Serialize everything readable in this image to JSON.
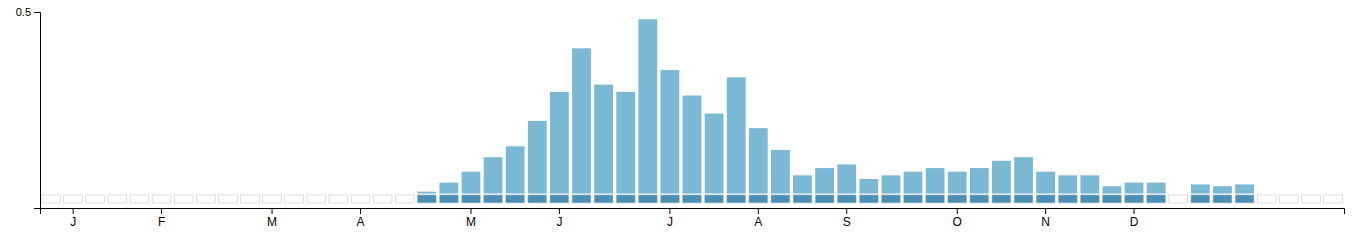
{
  "chart_data": {
    "type": "bar",
    "categories": [
      null,
      "J",
      null,
      null,
      null,
      "F",
      null,
      null,
      null,
      null,
      "M",
      null,
      null,
      null,
      "A",
      null,
      null,
      null,
      null,
      "M",
      null,
      null,
      null,
      "J",
      null,
      null,
      null,
      null,
      "J",
      null,
      null,
      null,
      "A",
      null,
      null,
      null,
      "S",
      null,
      null,
      null,
      null,
      "O",
      null,
      null,
      null,
      "N",
      null,
      null,
      null,
      "D",
      null,
      null,
      null,
      null,
      null,
      null,
      null,
      null,
      null
    ],
    "values": [
      0.0,
      0.0,
      0.0,
      0.0,
      0.0,
      0.0,
      0.0,
      0.0,
      0.0,
      0.0,
      0.0,
      0.0,
      0.0,
      0.0,
      0.0,
      0.0,
      0.0,
      0.005,
      0.03,
      0.06,
      0.1,
      0.13,
      0.2,
      0.28,
      0.4,
      0.3,
      0.28,
      0.48,
      0.34,
      0.27,
      0.22,
      0.32,
      0.18,
      0.12,
      0.05,
      0.07,
      0.08,
      0.04,
      0.05,
      0.06,
      0.07,
      0.06,
      0.07,
      0.09,
      0.1,
      0.06,
      0.05,
      0.05,
      0.02,
      0.03,
      0.03,
      0.0,
      0.025,
      0.02,
      0.025,
      0.0,
      0.0,
      0.0,
      0.0
    ],
    "color": "#7ab8d4",
    "ylim": [
      -0.04,
      0.5
    ],
    "yticks": [
      0.5
    ],
    "presence": [
      false,
      false,
      false,
      false,
      false,
      false,
      false,
      false,
      false,
      false,
      false,
      false,
      false,
      false,
      false,
      false,
      false,
      true,
      true,
      true,
      true,
      true,
      true,
      true,
      true,
      true,
      true,
      true,
      true,
      true,
      true,
      true,
      true,
      true,
      true,
      true,
      true,
      true,
      true,
      true,
      true,
      true,
      true,
      true,
      true,
      true,
      true,
      true,
      true,
      true,
      true,
      false,
      true,
      true,
      true,
      false,
      false,
      false,
      false
    ],
    "presence_colors": {
      "true": "#4a90b8",
      "false": "#ffffff"
    }
  }
}
